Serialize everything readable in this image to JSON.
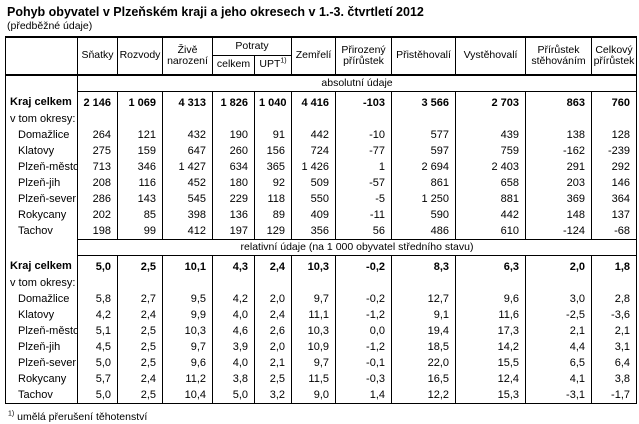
{
  "title": "Pohyb obyvatel v Plzeňském kraji a jeho okresech v 1.-3. čtvrtletí 2012",
  "subtitle": "(předběžné údaje)",
  "table": {
    "columns": {
      "snatky": "Sňatky",
      "rozvody": "Rozvody",
      "zive_narozeni": "Živě narození",
      "potraty": "Potraty",
      "potraty_celkem": "celkem",
      "potraty_upt": "UPT",
      "potraty_upt_sup": "1)",
      "zemreli": "Zemřelí",
      "prirozeny_prirustek": "Přirozený přírůstek",
      "pristehovali": "Přistěhovalí",
      "vystehovali": "Vystěhovalí",
      "prirustek_stehovanim": "Přírůstek stěhováním",
      "celkovy_prirustek": "Celkový přírůstek"
    },
    "sections": [
      {
        "band": "absolutní údaje",
        "rows": [
          {
            "label": "Kraj celkem",
            "style": "total",
            "values": [
              "2 146",
              "1 069",
              "4 313",
              "1 826",
              "1 040",
              "4 416",
              "-103",
              "3 566",
              "2 703",
              "863",
              "760"
            ]
          },
          {
            "label": "v tom okresy:",
            "style": "subhead",
            "values": [
              "",
              "",
              "",
              "",
              "",
              "",
              "",
              "",
              "",
              "",
              ""
            ]
          },
          {
            "label": "Domažlice",
            "style": "district",
            "values": [
              "264",
              "121",
              "432",
              "190",
              "91",
              "442",
              "-10",
              "577",
              "439",
              "138",
              "128"
            ]
          },
          {
            "label": "Klatovy",
            "style": "district",
            "values": [
              "275",
              "159",
              "647",
              "260",
              "156",
              "724",
              "-77",
              "597",
              "759",
              "-162",
              "-239"
            ]
          },
          {
            "label": "Plzeň-město",
            "style": "district",
            "values": [
              "713",
              "346",
              "1 427",
              "634",
              "365",
              "1 426",
              "1",
              "2 694",
              "2 403",
              "291",
              "292"
            ]
          },
          {
            "label": "Plzeň-jih",
            "style": "district",
            "values": [
              "208",
              "116",
              "452",
              "180",
              "92",
              "509",
              "-57",
              "861",
              "658",
              "203",
              "146"
            ]
          },
          {
            "label": "Plzeň-sever",
            "style": "district",
            "values": [
              "286",
              "143",
              "545",
              "229",
              "118",
              "550",
              "-5",
              "1 250",
              "881",
              "369",
              "364"
            ]
          },
          {
            "label": "Rokycany",
            "style": "district",
            "values": [
              "202",
              "85",
              "398",
              "136",
              "89",
              "409",
              "-11",
              "590",
              "442",
              "148",
              "137"
            ]
          },
          {
            "label": "Tachov",
            "style": "district",
            "values": [
              "198",
              "99",
              "412",
              "197",
              "129",
              "356",
              "56",
              "486",
              "610",
              "-124",
              "-68"
            ]
          }
        ]
      },
      {
        "band": "relativní údaje (na 1 000 obyvatel středního stavu)",
        "rows": [
          {
            "label": "Kraj celkem",
            "style": "total",
            "values": [
              "5,0",
              "2,5",
              "10,1",
              "4,3",
              "2,4",
              "10,3",
              "-0,2",
              "8,3",
              "6,3",
              "2,0",
              "1,8"
            ]
          },
          {
            "label": "v tom okresy:",
            "style": "subhead",
            "values": [
              "",
              "",
              "",
              "",
              "",
              "",
              "",
              "",
              "",
              "",
              ""
            ]
          },
          {
            "label": "Domažlice",
            "style": "district",
            "values": [
              "5,8",
              "2,7",
              "9,5",
              "4,2",
              "2,0",
              "9,7",
              "-0,2",
              "12,7",
              "9,6",
              "3,0",
              "2,8"
            ]
          },
          {
            "label": "Klatovy",
            "style": "district",
            "values": [
              "4,2",
              "2,4",
              "9,9",
              "4,0",
              "2,4",
              "11,1",
              "-1,2",
              "9,1",
              "11,6",
              "-2,5",
              "-3,6"
            ]
          },
          {
            "label": "Plzeň-město",
            "style": "district",
            "values": [
              "5,1",
              "2,5",
              "10,3",
              "4,6",
              "2,6",
              "10,3",
              "0,0",
              "19,4",
              "17,3",
              "2,1",
              "2,1"
            ]
          },
          {
            "label": "Plzeň-jih",
            "style": "district",
            "values": [
              "4,5",
              "2,5",
              "9,7",
              "3,9",
              "2,0",
              "10,9",
              "-1,2",
              "18,5",
              "14,2",
              "4,4",
              "3,1"
            ]
          },
          {
            "label": "Plzeň-sever",
            "style": "district",
            "values": [
              "5,0",
              "2,5",
              "9,6",
              "4,0",
              "2,1",
              "9,7",
              "-0,1",
              "22,0",
              "15,5",
              "6,5",
              "6,4"
            ]
          },
          {
            "label": "Rokycany",
            "style": "district",
            "values": [
              "5,7",
              "2,4",
              "11,2",
              "3,8",
              "2,5",
              "11,5",
              "-0,3",
              "16,5",
              "12,4",
              "4,1",
              "3,8"
            ]
          },
          {
            "label": "Tachov",
            "style": "district",
            "values": [
              "5,0",
              "2,5",
              "10,4",
              "5,0",
              "3,2",
              "9,0",
              "1,4",
              "12,2",
              "15,3",
              "-3,1",
              "-1,7"
            ]
          }
        ]
      }
    ]
  },
  "footnote": {
    "marker": "1)",
    "text": "umělá přerušení těhotenství"
  }
}
